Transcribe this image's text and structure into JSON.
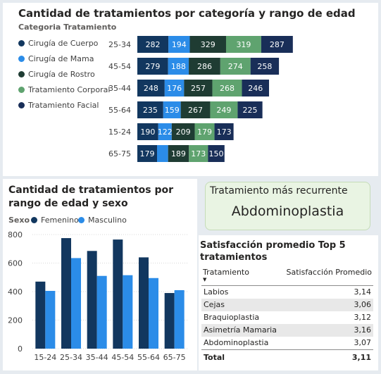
{
  "colors": {
    "cirugia_cuerpo": "#12375f",
    "cirugia_mama": "#2b8ce8",
    "cirugia_rostro": "#1f3c33",
    "tratamiento_corporal": "#5fa36f",
    "tratamiento_facial": "#192e58",
    "femenino": "#12375f",
    "masculino": "#2b8ce8"
  },
  "chart_data": [
    {
      "type": "bar",
      "orientation": "horizontal",
      "stacked": true,
      "title": "Cantidad de tratamientos por categoría y rango de edad",
      "legend_title": "Categoria Tratamiento",
      "legend_position": "left",
      "categories": [
        "25-34",
        "45-54",
        "35-44",
        "55-64",
        "15-24",
        "65-75"
      ],
      "series": [
        {
          "name": "Cirugía de Cuerpo",
          "values": [
            282,
            279,
            248,
            235,
            190,
            179
          ]
        },
        {
          "name": "Cirugía de Mama",
          "values": [
            194,
            188,
            176,
            159,
            122,
            100
          ]
        },
        {
          "name": "Cirugía de Rostro",
          "values": [
            329,
            286,
            257,
            267,
            209,
            189
          ]
        },
        {
          "name": "Tratamiento Corporal",
          "values": [
            319,
            274,
            268,
            249,
            179,
            173
          ]
        },
        {
          "name": "Tratamiento Facial",
          "values": [
            287,
            258,
            246,
            225,
            173,
            150
          ]
        }
      ],
      "data_labels": [
        [
          "282",
          "194",
          "329",
          "319",
          "287"
        ],
        [
          "279",
          "188",
          "286",
          "274",
          "258"
        ],
        [
          "248",
          "176",
          "257",
          "268",
          "246"
        ],
        [
          "235",
          "159",
          "267",
          "249",
          "225"
        ],
        [
          "190",
          "122",
          "209",
          "179",
          "173"
        ],
        [
          "179",
          "",
          "189",
          "173",
          "150"
        ]
      ],
      "axes_visible": false,
      "grid": false
    },
    {
      "type": "bar",
      "orientation": "vertical",
      "title": "Cantidad de tratamientos por rango de edad y sexo",
      "legend_title": "Sexo",
      "legend_position": "top-left",
      "categories": [
        "15-24",
        "25-34",
        "35-44",
        "45-54",
        "55-64",
        "65-75"
      ],
      "series": [
        {
          "name": "Femenino",
          "values": [
            470,
            775,
            685,
            765,
            640,
            390
          ]
        },
        {
          "name": "Masculino",
          "values": [
            405,
            635,
            510,
            515,
            495,
            410
          ]
        }
      ],
      "ylim": [
        0,
        800
      ],
      "yticks": [
        "0",
        "200",
        "400",
        "600",
        "800"
      ],
      "grid": true
    }
  ],
  "kpi": {
    "title": "Tratamiento más recurrente",
    "value": "Abdominoplastia"
  },
  "satisfaction_table": {
    "title": "Satisfacción promedio Top 5 tratamientos",
    "columns": [
      "Tratamiento",
      "Satisfacción Promedio"
    ],
    "rows": [
      [
        "Labios",
        "3,14"
      ],
      [
        "Cejas",
        "3,06"
      ],
      [
        "Braquioplastia",
        "3,12"
      ],
      [
        "Asimetría Mamaria",
        "3,16"
      ],
      [
        "Abdominoplastia",
        "3,07"
      ]
    ],
    "total_label": "Total",
    "total_value": "3,11"
  }
}
